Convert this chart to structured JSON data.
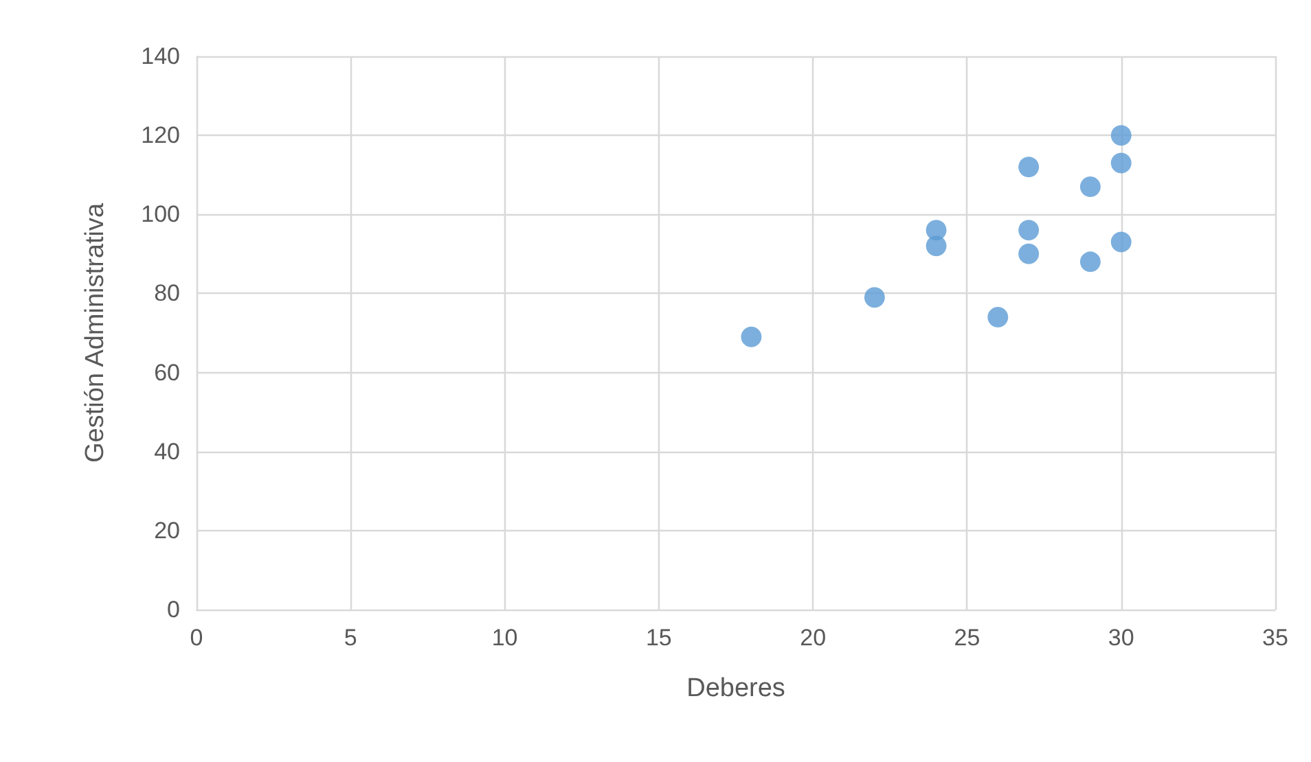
{
  "chart_data": {
    "type": "scatter",
    "xlabel": "Deberes",
    "ylabel": "Gestión Administrativa",
    "x": [
      18,
      22,
      24,
      24,
      26,
      27,
      27,
      27,
      29,
      29,
      30,
      30,
      30
    ],
    "values": [
      69,
      79,
      96,
      92,
      74,
      112,
      96,
      90,
      107,
      88,
      120,
      113,
      93
    ],
    "color": "#5b9bd5",
    "marker": "circle",
    "grid": true,
    "xlim": [
      0,
      35
    ],
    "xticks": [
      0,
      5,
      10,
      15,
      20,
      25,
      30,
      35
    ],
    "ylim": [
      0,
      140
    ],
    "yticks": [
      0,
      20,
      40,
      60,
      80,
      100,
      120,
      140
    ]
  }
}
